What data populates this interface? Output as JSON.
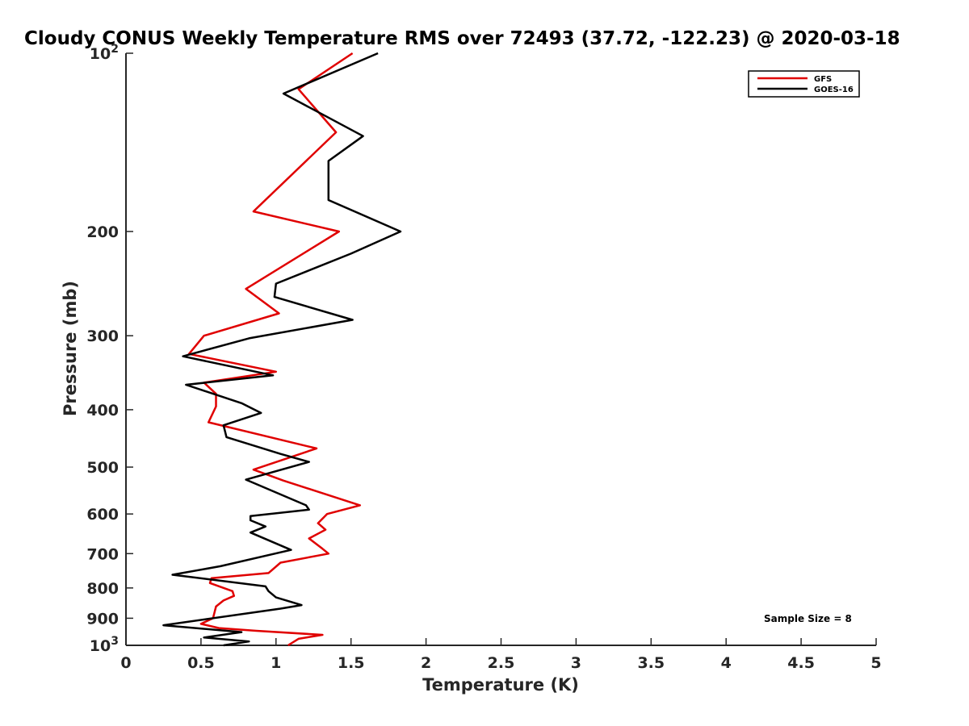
{
  "chart_data": {
    "type": "line",
    "title": "Cloudy CONUS Weekly Temperature RMS over 72493 (37.72, -122.23) @ 2020-03-18",
    "xlabel": "Temperature (K)",
    "ylabel": "Pressure (mb)",
    "xlim": [
      0,
      5
    ],
    "ylim": [
      100,
      1000
    ],
    "yscale": "log",
    "y_reversed": true,
    "grid": false,
    "legend_position": "top-right",
    "x_ticks": [
      0,
      0.5,
      1,
      1.5,
      2,
      2.5,
      3,
      3.5,
      4,
      4.5,
      5
    ],
    "x_tick_labels": [
      "0",
      "0.5",
      "1",
      "1.5",
      "2",
      "2.5",
      "3",
      "3.5",
      "4",
      "4.5",
      "5"
    ],
    "y_ticks": [
      100,
      200,
      300,
      400,
      500,
      600,
      700,
      800,
      900,
      1000
    ],
    "y_tick_labels": [
      {
        "base": "10",
        "exp": "2"
      },
      {
        "base": "200",
        "exp": ""
      },
      {
        "base": "300",
        "exp": ""
      },
      {
        "base": "400",
        "exp": ""
      },
      {
        "base": "500",
        "exp": ""
      },
      {
        "base": "600",
        "exp": ""
      },
      {
        "base": "700",
        "exp": ""
      },
      {
        "base": "800",
        "exp": ""
      },
      {
        "base": "900",
        "exp": ""
      },
      {
        "base": "10",
        "exp": "3"
      }
    ],
    "series": [
      {
        "name": "GFS",
        "color": "#e00000",
        "points": [
          [
            1.51,
            100
          ],
          [
            1.15,
            115
          ],
          [
            1.4,
            136
          ],
          [
            0.85,
            185
          ],
          [
            1.42,
            200
          ],
          [
            0.8,
            250
          ],
          [
            1.02,
            275
          ],
          [
            0.52,
            300
          ],
          [
            0.42,
            322
          ],
          [
            1.0,
            345
          ],
          [
            0.52,
            360
          ],
          [
            0.6,
            376
          ],
          [
            0.6,
            395
          ],
          [
            0.55,
            420
          ],
          [
            1.27,
            465
          ],
          [
            0.85,
            505
          ],
          [
            1.05,
            527
          ],
          [
            1.56,
            580
          ],
          [
            1.34,
            600
          ],
          [
            1.28,
            622
          ],
          [
            1.33,
            638
          ],
          [
            1.22,
            660
          ],
          [
            1.31,
            687
          ],
          [
            1.35,
            700
          ],
          [
            1.03,
            725
          ],
          [
            0.95,
            755
          ],
          [
            0.57,
            770
          ],
          [
            0.56,
            785
          ],
          [
            0.71,
            810
          ],
          [
            0.72,
            825
          ],
          [
            0.65,
            840
          ],
          [
            0.6,
            860
          ],
          [
            0.58,
            900
          ],
          [
            0.5,
            920
          ],
          [
            0.62,
            935
          ],
          [
            0.87,
            945
          ],
          [
            1.31,
            960
          ],
          [
            1.15,
            975
          ],
          [
            1.08,
            1000
          ]
        ]
      },
      {
        "name": "GOES-16",
        "color": "#000000",
        "points": [
          [
            1.68,
            100
          ],
          [
            1.05,
            117
          ],
          [
            1.58,
            138
          ],
          [
            1.35,
            152
          ],
          [
            1.35,
            177
          ],
          [
            1.83,
            200
          ],
          [
            1.5,
            218
          ],
          [
            1.0,
            245
          ],
          [
            0.99,
            258
          ],
          [
            1.51,
            282
          ],
          [
            0.82,
            303
          ],
          [
            0.38,
            325
          ],
          [
            0.98,
            350
          ],
          [
            0.4,
            363
          ],
          [
            0.77,
            390
          ],
          [
            0.9,
            405
          ],
          [
            0.65,
            425
          ],
          [
            0.67,
            445
          ],
          [
            1.03,
            475
          ],
          [
            1.22,
            490
          ],
          [
            0.8,
            525
          ],
          [
            1.2,
            580
          ],
          [
            1.22,
            590
          ],
          [
            0.83,
            605
          ],
          [
            0.83,
            615
          ],
          [
            0.93,
            630
          ],
          [
            0.83,
            645
          ],
          [
            1.1,
            690
          ],
          [
            0.63,
            735
          ],
          [
            0.31,
            760
          ],
          [
            0.93,
            795
          ],
          [
            0.95,
            810
          ],
          [
            1.0,
            830
          ],
          [
            1.17,
            855
          ],
          [
            1.03,
            867
          ],
          [
            0.25,
            925
          ],
          [
            0.77,
            950
          ],
          [
            0.52,
            970
          ],
          [
            0.82,
            985
          ],
          [
            0.65,
            1000
          ]
        ]
      }
    ],
    "annotations": [
      "Sample Size = 8"
    ]
  }
}
